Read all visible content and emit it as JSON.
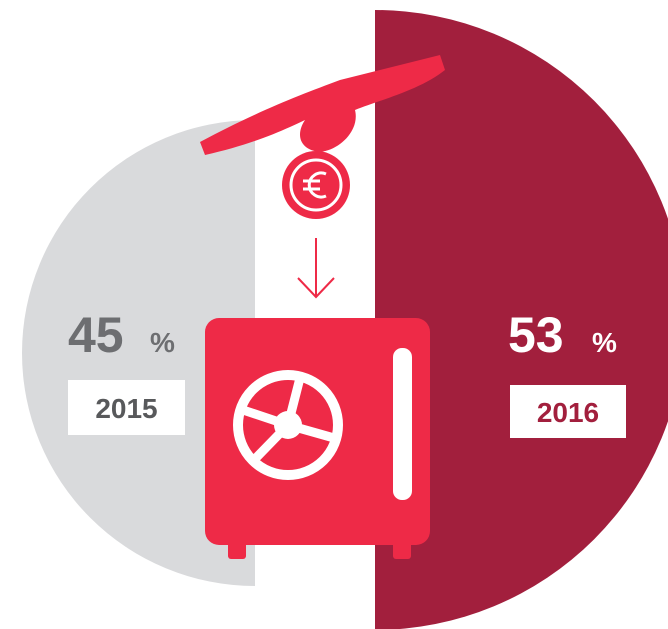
{
  "items": [
    {
      "value": 45,
      "unit": "%",
      "year": "2015"
    },
    {
      "value": 53,
      "unit": "%",
      "year": "2016"
    }
  ]
}
